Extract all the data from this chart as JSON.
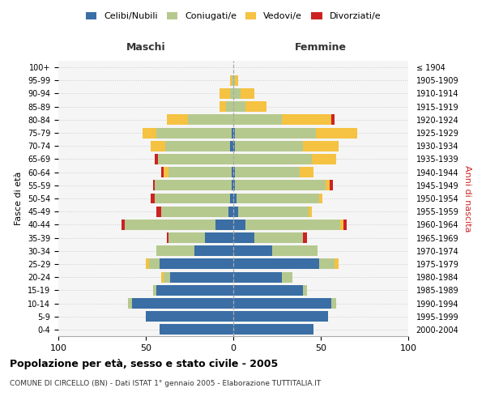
{
  "age_groups": [
    "0-4",
    "5-9",
    "10-14",
    "15-19",
    "20-24",
    "25-29",
    "30-34",
    "35-39",
    "40-44",
    "45-49",
    "50-54",
    "55-59",
    "60-64",
    "65-69",
    "70-74",
    "75-79",
    "80-84",
    "85-89",
    "90-94",
    "95-99",
    "100+"
  ],
  "birth_years": [
    "2000-2004",
    "1995-1999",
    "1990-1994",
    "1985-1989",
    "1980-1984",
    "1975-1979",
    "1970-1974",
    "1965-1969",
    "1960-1964",
    "1955-1959",
    "1950-1954",
    "1945-1949",
    "1940-1944",
    "1935-1939",
    "1930-1934",
    "1925-1929",
    "1920-1924",
    "1915-1919",
    "1910-1914",
    "1905-1909",
    "≤ 1904"
  ],
  "colors": {
    "celibi": "#3a6ea5",
    "coniugati": "#b5c98e",
    "vedovi": "#f5c242",
    "divorziati": "#cc2222"
  },
  "males": {
    "celibi": [
      42,
      50,
      58,
      44,
      36,
      42,
      22,
      16,
      10,
      3,
      2,
      1,
      1,
      0,
      2,
      1,
      0,
      0,
      0,
      0,
      0
    ],
    "coniugati": [
      0,
      0,
      2,
      2,
      4,
      6,
      22,
      21,
      52,
      38,
      43,
      44,
      36,
      43,
      37,
      43,
      26,
      4,
      2,
      1,
      0
    ],
    "vedovi": [
      0,
      0,
      0,
      0,
      1,
      2,
      0,
      0,
      0,
      0,
      0,
      0,
      3,
      0,
      8,
      8,
      12,
      4,
      6,
      1,
      0
    ],
    "divorziati": [
      0,
      0,
      0,
      0,
      0,
      0,
      0,
      1,
      2,
      3,
      2,
      1,
      1,
      2,
      0,
      0,
      0,
      0,
      0,
      0,
      0
    ]
  },
  "females": {
    "celibi": [
      46,
      54,
      56,
      40,
      28,
      49,
      22,
      12,
      7,
      3,
      2,
      1,
      1,
      0,
      1,
      1,
      0,
      0,
      0,
      0,
      0
    ],
    "coniugati": [
      0,
      0,
      3,
      2,
      6,
      9,
      26,
      28,
      54,
      40,
      47,
      52,
      37,
      45,
      39,
      46,
      28,
      7,
      4,
      1,
      0
    ],
    "vedovi": [
      0,
      0,
      0,
      0,
      0,
      2,
      0,
      0,
      2,
      2,
      2,
      2,
      8,
      14,
      20,
      24,
      28,
      12,
      8,
      2,
      0
    ],
    "divorziati": [
      0,
      0,
      0,
      0,
      0,
      0,
      0,
      2,
      2,
      0,
      0,
      2,
      0,
      0,
      0,
      0,
      2,
      0,
      0,
      0,
      0
    ]
  },
  "title": "Popolazione per età, sesso e stato civile - 2005",
  "subtitle": "COMUNE DI CIRCELLO (BN) - Dati ISTAT 1° gennaio 2005 - Elaborazione TUTTITALIA.IT",
  "xlabel_left": "Maschi",
  "xlabel_right": "Femmine",
  "ylabel_left": "Fasce di età",
  "ylabel_right": "Anni di nascita",
  "legend_labels": [
    "Celibi/Nubili",
    "Coniugati/e",
    "Vedovi/e",
    "Divorziati/e"
  ],
  "bg_color": "#ffffff",
  "plot_bg_color": "#f5f5f5",
  "header_color_left": "#333333",
  "header_color_right": "#333333",
  "right_ylabel_color": "#cc2222"
}
